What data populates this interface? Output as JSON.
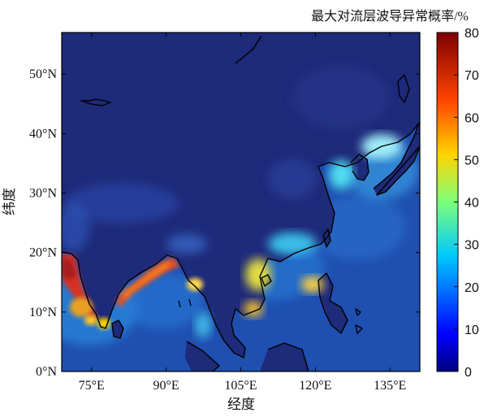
{
  "colorbar": {
    "title": "最大对流层波导异常概率/%",
    "ticks": [
      "80",
      "70",
      "60",
      "50",
      "40",
      "30",
      "20",
      "10",
      "0"
    ],
    "range": [
      0,
      80
    ],
    "colormap": "jet"
  },
  "axes": {
    "xlabel": "经度",
    "ylabel": "纬度",
    "x_ticks": [
      "75°E",
      "90°E",
      "105°E",
      "120°E",
      "135°E"
    ],
    "y_ticks": [
      "50°N",
      "40°N",
      "30°N",
      "20°N",
      "10°N",
      "0°N"
    ],
    "lon_range_deg": [
      69,
      141
    ],
    "lat_range_deg": [
      0,
      57
    ]
  },
  "colors": {
    "land_low": "#1e2a7a",
    "ocean_base": "#1f4fb0",
    "coastline": "#000000",
    "hotspot": "#c8201c"
  }
}
